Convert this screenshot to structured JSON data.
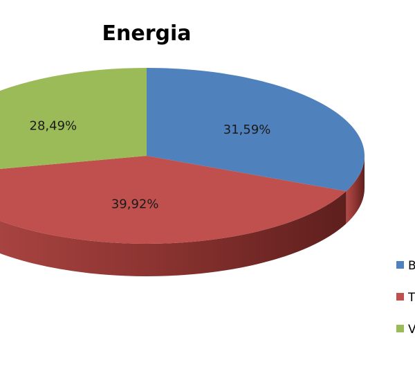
{
  "chart_data": {
    "type": "pie",
    "title": "Energia",
    "series": [
      {
        "name": "B",
        "value": 31.59,
        "label": "31,59%",
        "color": "#4F81BD"
      },
      {
        "name": "T",
        "value": 39.92,
        "label": "39,92%",
        "color": "#C0504D"
      },
      {
        "name": "V",
        "value": 28.49,
        "label": "28,49%",
        "color": "#9BBB59"
      }
    ],
    "legend_position": "right",
    "style": "3d-tilted"
  }
}
